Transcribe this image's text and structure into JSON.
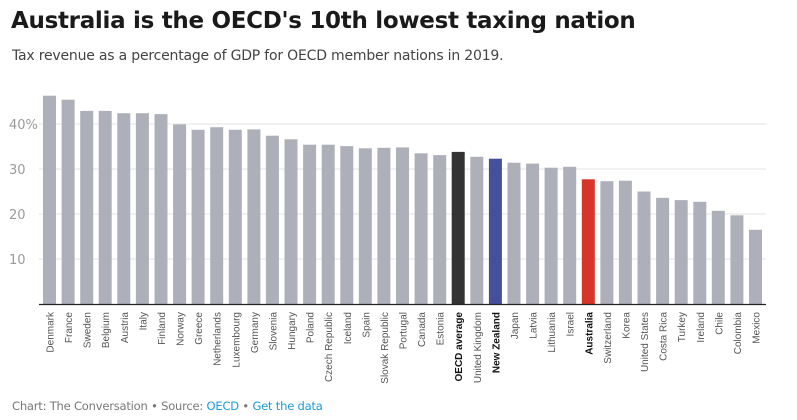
{
  "header": {
    "title": "Australia is the OECD's 10th lowest taxing nation",
    "subtitle": "Tax revenue as a percentage of GDP for OECD member nations in 2019."
  },
  "footer": {
    "chart_credit": "Chart: The Conversation",
    "separator": " • ",
    "source_label": "Source: ",
    "source_link": "OECD",
    "get_data_link": "Get the data"
  },
  "colors": {
    "default": "#adb0b9",
    "oecd_average": "#333333",
    "new_zealand": "#464f9c",
    "australia": "#d63528",
    "gridline": "#e3e3e3",
    "axis": "#222222",
    "tick_label": "#9a9a9a",
    "category_label": "#555555",
    "link": "#1b9ad6"
  },
  "chart_data": {
    "type": "bar",
    "title": "Australia is the OECD's 10th lowest taxing nation",
    "subtitle": "Tax revenue as a percentage of GDP for OECD member nations in 2019.",
    "xlabel": "",
    "ylabel": "",
    "ylim": [
      0,
      47
    ],
    "yticks": [
      {
        "value": 10,
        "label": "10"
      },
      {
        "value": 20,
        "label": "20"
      },
      {
        "value": 30,
        "label": "30"
      },
      {
        "value": 40,
        "label": "40%"
      }
    ],
    "grid": true,
    "legend": "none",
    "categories": [
      "Denmark",
      "France",
      "Sweden",
      "Belgium",
      "Austria",
      "Italy",
      "Finland",
      "Norway",
      "Greece",
      "Netherlands",
      "Luxembourg",
      "Germany",
      "Slovenia",
      "Hungary",
      "Poland",
      "Czech Republic",
      "Iceland",
      "Spain",
      "Slovak Republic",
      "Portugal",
      "Canada",
      "Estonia",
      "OECD average",
      "United Kingdom",
      "New Zealand",
      "Japan",
      "Latvia",
      "Lithuania",
      "Israel",
      "Australia",
      "Switzerland",
      "Korea",
      "United States",
      "Costa Rica",
      "Turkey",
      "Ireland",
      "Chile",
      "Colombia",
      "Mexico"
    ],
    "values": [
      46.3,
      45.4,
      42.9,
      42.9,
      42.4,
      42.4,
      42.2,
      39.9,
      38.7,
      39.3,
      38.7,
      38.8,
      37.4,
      36.6,
      35.4,
      35.4,
      35.1,
      34.6,
      34.7,
      34.8,
      33.5,
      33.1,
      33.8,
      32.7,
      32.3,
      31.4,
      31.2,
      30.3,
      30.5,
      27.7,
      27.3,
      27.4,
      25.0,
      23.6,
      23.1,
      22.7,
      20.7,
      19.7,
      16.5
    ],
    "highlights": {
      "OECD average": "oecd_average",
      "New Zealand": "new_zealand",
      "Australia": "australia"
    },
    "bold_labels": [
      "OECD average",
      "New Zealand",
      "Australia"
    ]
  }
}
